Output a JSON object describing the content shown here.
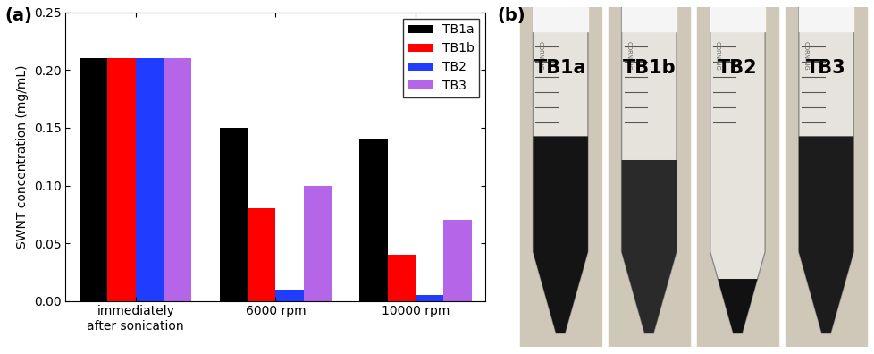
{
  "panel_labels": [
    "(a)",
    "(b)"
  ],
  "chart_data": {
    "type": "bar",
    "y_label": "SWNT concentration (mg/mL)",
    "categories": [
      "immediately after sonication",
      "6000 rpm",
      "10000 rpm"
    ],
    "series": [
      {
        "name": "TB1a",
        "color": "#000000",
        "values": [
          0.21,
          0.15,
          0.14
        ]
      },
      {
        "name": "TB1b",
        "color": "#ff0000",
        "values": [
          0.21,
          0.08,
          0.04
        ]
      },
      {
        "name": "TB2",
        "color": "#1f3cff",
        "values": [
          0.21,
          0.01,
          0.005
        ]
      },
      {
        "name": "TB3",
        "color": "#b565e8",
        "values": [
          0.21,
          0.1,
          0.07
        ]
      }
    ],
    "ylim": [
      0,
      0.25
    ],
    "yticks": [
      {
        "value": 0,
        "label": "0.00"
      },
      {
        "value": 0.05,
        "label": "0.05"
      },
      {
        "value": 0.1,
        "label": "0.10"
      },
      {
        "value": 0.15,
        "label": "0.15"
      },
      {
        "value": 0.2,
        "label": "0.20"
      },
      {
        "value": 0.25,
        "label": "0.25"
      }
    ],
    "legend": "upper right",
    "grid": false
  },
  "photo": {
    "brand": "CORNING",
    "tube_labels": [
      "TB1a",
      "TB1b",
      "TB2",
      "TB3"
    ]
  }
}
